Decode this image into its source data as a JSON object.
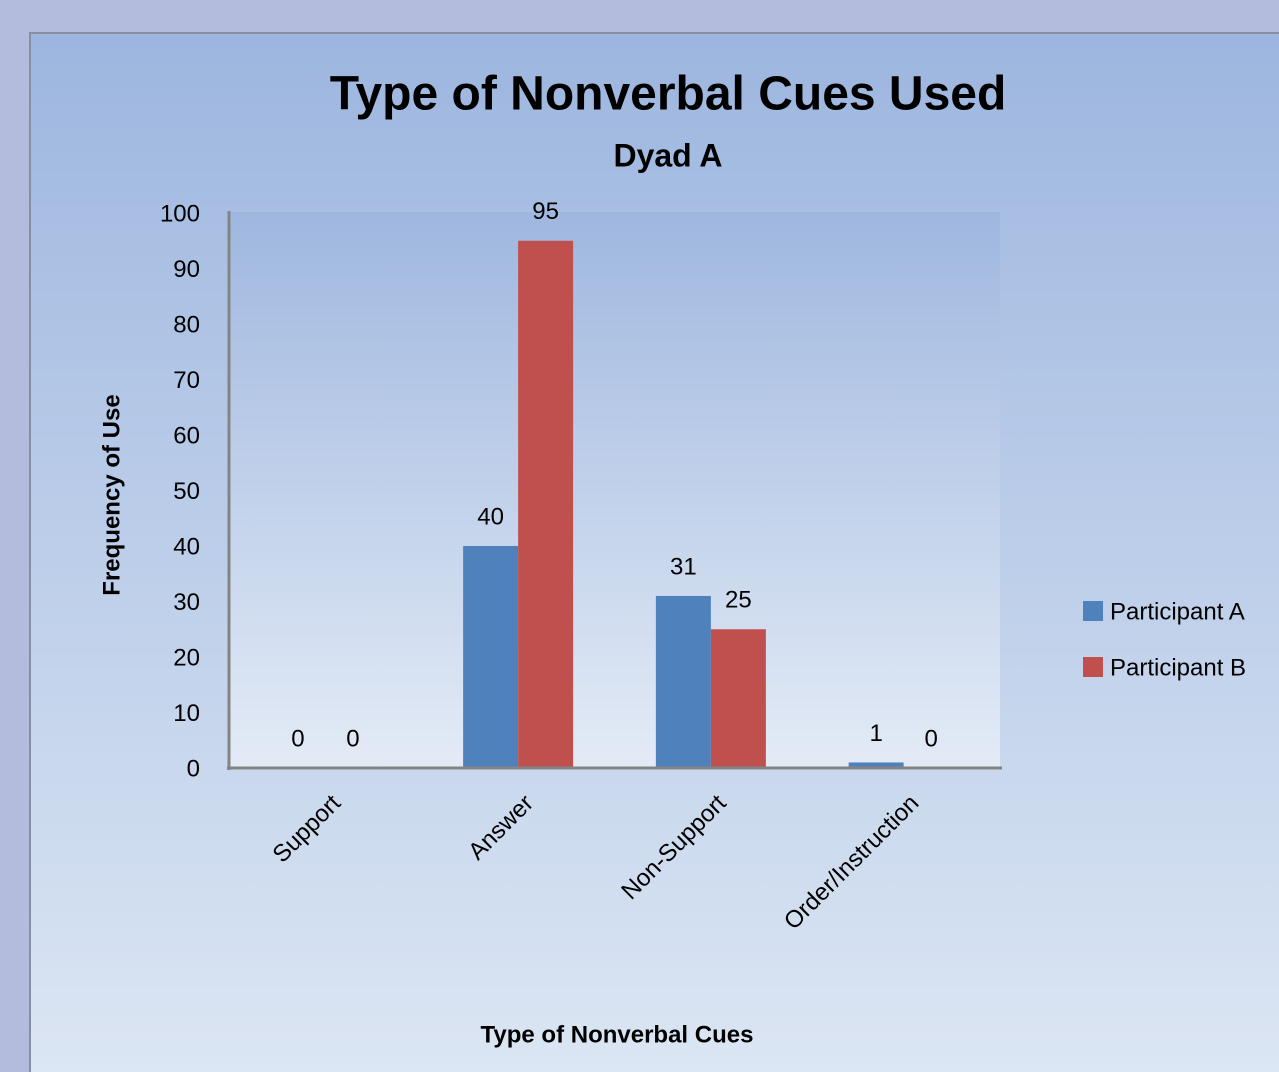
{
  "chart_data": {
    "type": "bar",
    "title": "Type of Nonverbal Cues Used",
    "subtitle": "Dyad A",
    "x_label": "Type of Nonverbal Cues",
    "y_label": "Frequency of Use",
    "categories": [
      "Support",
      "Answer",
      "Non-Support",
      "Order/Instruction"
    ],
    "series": [
      {
        "name": "Participant A",
        "color": "#4f81bd",
        "values": [
          0,
          40,
          31,
          1
        ]
      },
      {
        "name": "Participant B",
        "color": "#c0504d",
        "values": [
          0,
          95,
          25,
          0
        ]
      }
    ],
    "ylim": [
      0,
      100
    ],
    "yticks": [
      0,
      10,
      20,
      30,
      40,
      50,
      60,
      70,
      80,
      90,
      100
    ],
    "grid": false,
    "legend": "right"
  }
}
